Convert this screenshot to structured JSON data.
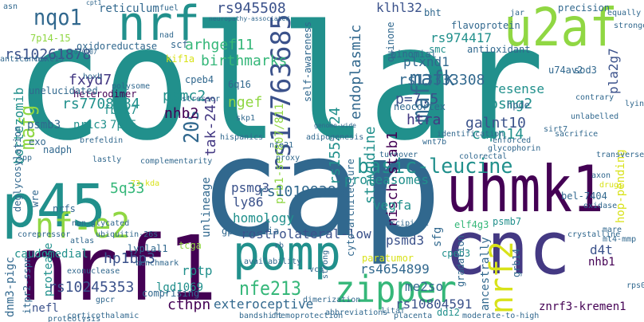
{
  "palette": {
    "teal": "#21908c",
    "green": "#35b779",
    "yellowgreen": "#90d743",
    "yellow": "#d8e219",
    "blue": "#31688e",
    "indigo": "#443983",
    "purple": "#440154",
    "slate": "#3b528b"
  },
  "words": [
    "collar",
    "cap",
    "cnc",
    "nrf1",
    "p45",
    "uhmk1",
    "pomp",
    "u2af",
    "nrf",
    "nf-e2",
    "zipper",
    "rs17763685",
    "basic-leucine",
    "nrf2",
    "mafk",
    "nqo1",
    "maf",
    "20s",
    "mafg",
    "nfe213",
    "rs945508",
    "rs10261878",
    "arhgef11",
    "birthmarks",
    "fxyd7",
    "heterodimer",
    "rs7708584",
    "psmc2",
    "nhb2",
    "tak-243",
    "ngef",
    "rs1552224",
    "prb1-ser807/811",
    "stavudine",
    "rs13333308",
    "nisch-stab1",
    "capn14",
    "galnt10",
    "psmg2",
    "presense",
    "p=7.5",
    "htra",
    "endoplasmic",
    "rs974417",
    "smc",
    "plxnd1",
    "klhl32",
    "bortezomib",
    "psmb3",
    "nr1c3",
    "7p15",
    "5q33",
    "ly86",
    "psmg3",
    "homology",
    "vegfa",
    "proteasomes",
    "rs10199388",
    "unlineage",
    "rostrolateral-low",
    "psmd3",
    "rs4654899",
    "exteroceptive",
    "cthpn",
    "rptp",
    "hp1bp3",
    "lgd1069",
    "protease",
    "itpr2-sspn",
    "dnm3-pigc",
    "rs10245353",
    "nefl",
    "me2so",
    "rs10804591",
    "znrf3-kremen1",
    "ddi2",
    "grb14",
    "sfg",
    "cpeb3",
    "d4t",
    "nhb1",
    "gradation",
    "ancestrally",
    "oxidoreductase",
    "7p14-15",
    "fbwx7",
    "unelucidated",
    "reticulum",
    "quinone",
    "antioxidant",
    "bht",
    "flavoprotein",
    "kif1a",
    "cpeb4",
    "6q16",
    "sod3",
    "u74av2",
    "pla2g7",
    "precision",
    "self-awareness",
    "cyto-architecture",
    "elf4g3",
    "psmb7",
    "bel-7404",
    "hop-pending",
    "hpde",
    "binomial",
    "neocortex",
    "scf",
    "anticancer",
    "exo",
    "nadph",
    "deglycosylation",
    "wre",
    "nrfs",
    "caudomedial",
    "lyplal1",
    "paratumor",
    "tcga",
    "gpiib/iiia",
    "chemoprotection",
    "litaf",
    "73-kda",
    "comprising",
    "polysome",
    "brefeldin",
    "hispanics",
    "stressor",
    "skp1",
    "proxy",
    "vcp",
    "rb",
    "strong",
    "occipital",
    "turnover",
    "colorectal",
    "glycophorin",
    "transversely",
    "drugs",
    "ubiquitin-26s",
    "atlas",
    "non-glycated",
    "corepressor",
    "benchmark",
    "exonuclease",
    "corticothalamic",
    "dimerization",
    "placenta",
    "moderate-to-high",
    "abbreviations",
    "bandshift",
    "mare",
    "mt4-mmp",
    "axon",
    "stronger",
    "unlabelled",
    "contrary",
    "identification",
    "enforced",
    "neuropathy-associated",
    "sacrifice",
    "adipogenesis",
    "complementarity",
    "lastly",
    "sirt7",
    "hoxb",
    "hoxc13",
    "wnt7b",
    "equally",
    "oxidase",
    "genome-wide",
    "availability",
    "asn",
    "nad",
    "t070907",
    "cpt1",
    "gpcr",
    "lying",
    "jar",
    "proteolysis",
    "spp",
    "rps03",
    "crystalline",
    "fuel",
    "nfe21"
  ]
}
